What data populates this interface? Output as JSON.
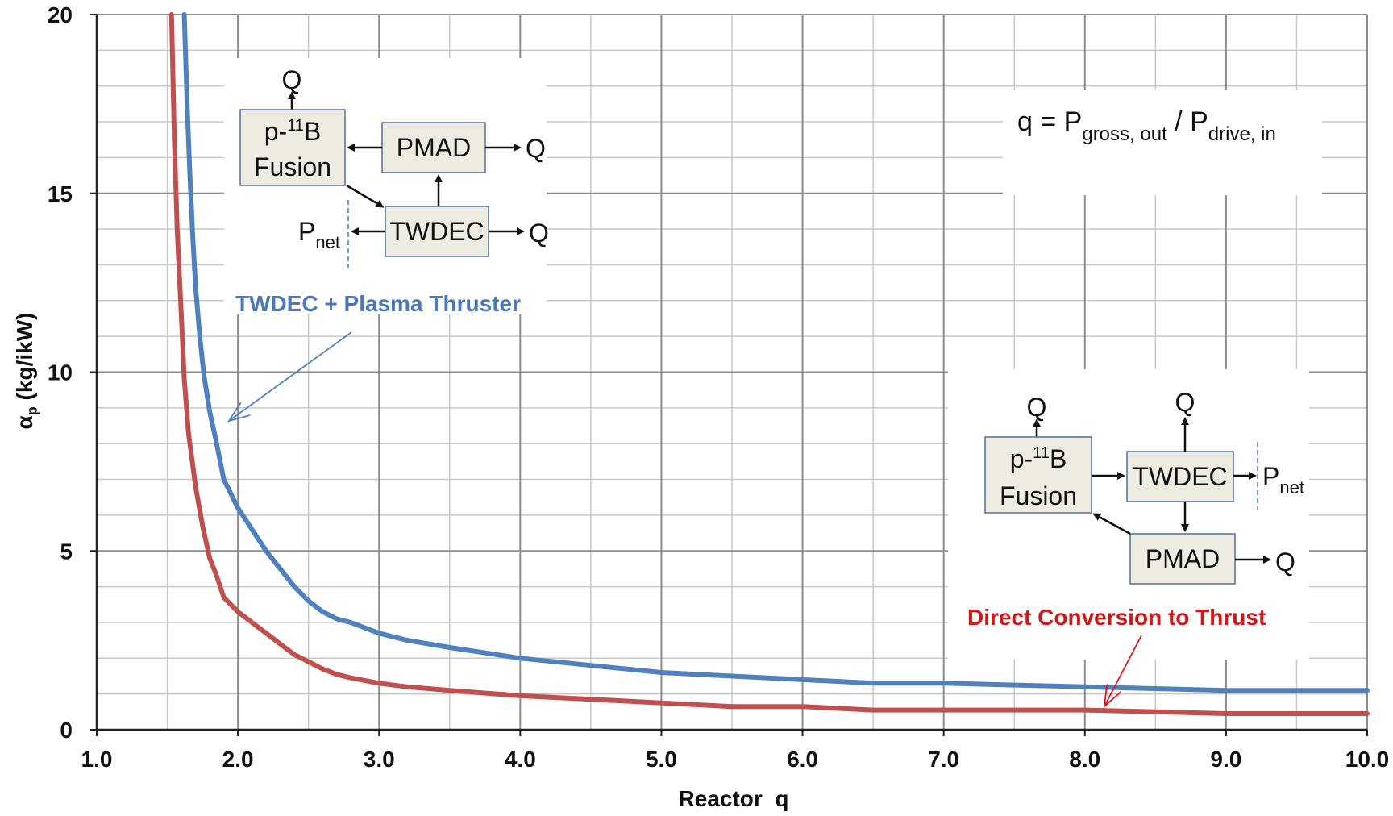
{
  "chart_data": {
    "type": "line",
    "xlabel": "Reactor  q",
    "ylabel_main": "α",
    "ylabel_sub": "p",
    "ylabel_rest": " (kg/ikW)",
    "xlim": [
      1.0,
      10.0
    ],
    "ylim": [
      0,
      20
    ],
    "x_ticks": [
      "1.0",
      "2.0",
      "3.0",
      "4.0",
      "5.0",
      "6.0",
      "7.0",
      "8.0",
      "9.0",
      "10.0"
    ],
    "y_ticks": [
      "0",
      "5",
      "10",
      "15",
      "20"
    ],
    "grid": true,
    "series": [
      {
        "name": "TWDEC + Plasma Thruster",
        "color": "#4f81bd",
        "x": [
          1.62,
          1.64,
          1.66,
          1.68,
          1.7,
          1.73,
          1.76,
          1.8,
          1.85,
          1.9,
          1.95,
          2.0,
          2.1,
          2.2,
          2.3,
          2.4,
          2.5,
          2.6,
          2.7,
          2.8,
          3.0,
          3.2,
          3.5,
          4.0,
          4.5,
          5.0,
          5.5,
          6.0,
          6.5,
          7.0,
          7.5,
          8.0,
          8.5,
          9.0,
          9.5,
          10.0
        ],
        "y": [
          20,
          17.5,
          15.5,
          13.8,
          12.4,
          11.0,
          9.9,
          8.9,
          8.0,
          7.0,
          6.6,
          6.2,
          5.6,
          5.0,
          4.5,
          4.0,
          3.6,
          3.3,
          3.1,
          3.0,
          2.7,
          2.5,
          2.3,
          2.0,
          1.8,
          1.6,
          1.5,
          1.4,
          1.3,
          1.3,
          1.25,
          1.2,
          1.15,
          1.1,
          1.1,
          1.1
        ]
      },
      {
        "name": "Direct Conversion to Thrust",
        "color": "#c0504d",
        "x": [
          1.53,
          1.55,
          1.57,
          1.6,
          1.62,
          1.65,
          1.7,
          1.75,
          1.8,
          1.85,
          1.9,
          1.95,
          2.0,
          2.1,
          2.2,
          2.3,
          2.4,
          2.5,
          2.6,
          2.7,
          2.8,
          3.0,
          3.2,
          3.5,
          4.0,
          4.5,
          5.0,
          5.5,
          6.0,
          6.5,
          7.0,
          7.5,
          8.0,
          8.5,
          9.0,
          9.5,
          10.0
        ],
        "y": [
          20,
          16.5,
          14.0,
          11.5,
          9.8,
          8.3,
          6.8,
          5.7,
          4.8,
          4.3,
          3.7,
          3.5,
          3.3,
          3.0,
          2.7,
          2.4,
          2.1,
          1.9,
          1.7,
          1.55,
          1.45,
          1.3,
          1.2,
          1.1,
          0.95,
          0.85,
          0.75,
          0.65,
          0.65,
          0.55,
          0.55,
          0.55,
          0.55,
          0.5,
          0.45,
          0.45,
          0.45
        ]
      }
    ],
    "annotations": {
      "blue_label": "TWDEC + Plasma Thruster",
      "red_label": "Direct Conversion to Thrust",
      "equation": {
        "lhs": "q = P",
        "sub1": "gross, out",
        "mid": " / P",
        "sub2": "drive, in"
      }
    },
    "diagram_top": {
      "fusion_line1": "p-",
      "fusion_sup": "11",
      "fusion_line1b": "B",
      "fusion_line2": "Fusion",
      "pmad": "PMAD",
      "twdec": "TWDEC",
      "q_label": "Q",
      "pnet_main": "P",
      "pnet_sub": "net"
    },
    "diagram_bottom": {
      "fusion_line1": "p-",
      "fusion_sup": "11",
      "fusion_line1b": "B",
      "fusion_line2": "Fusion",
      "pmad": "PMAD",
      "twdec": "TWDEC",
      "q_label": "Q",
      "pnet_main": "P",
      "pnet_sub": "net"
    }
  }
}
